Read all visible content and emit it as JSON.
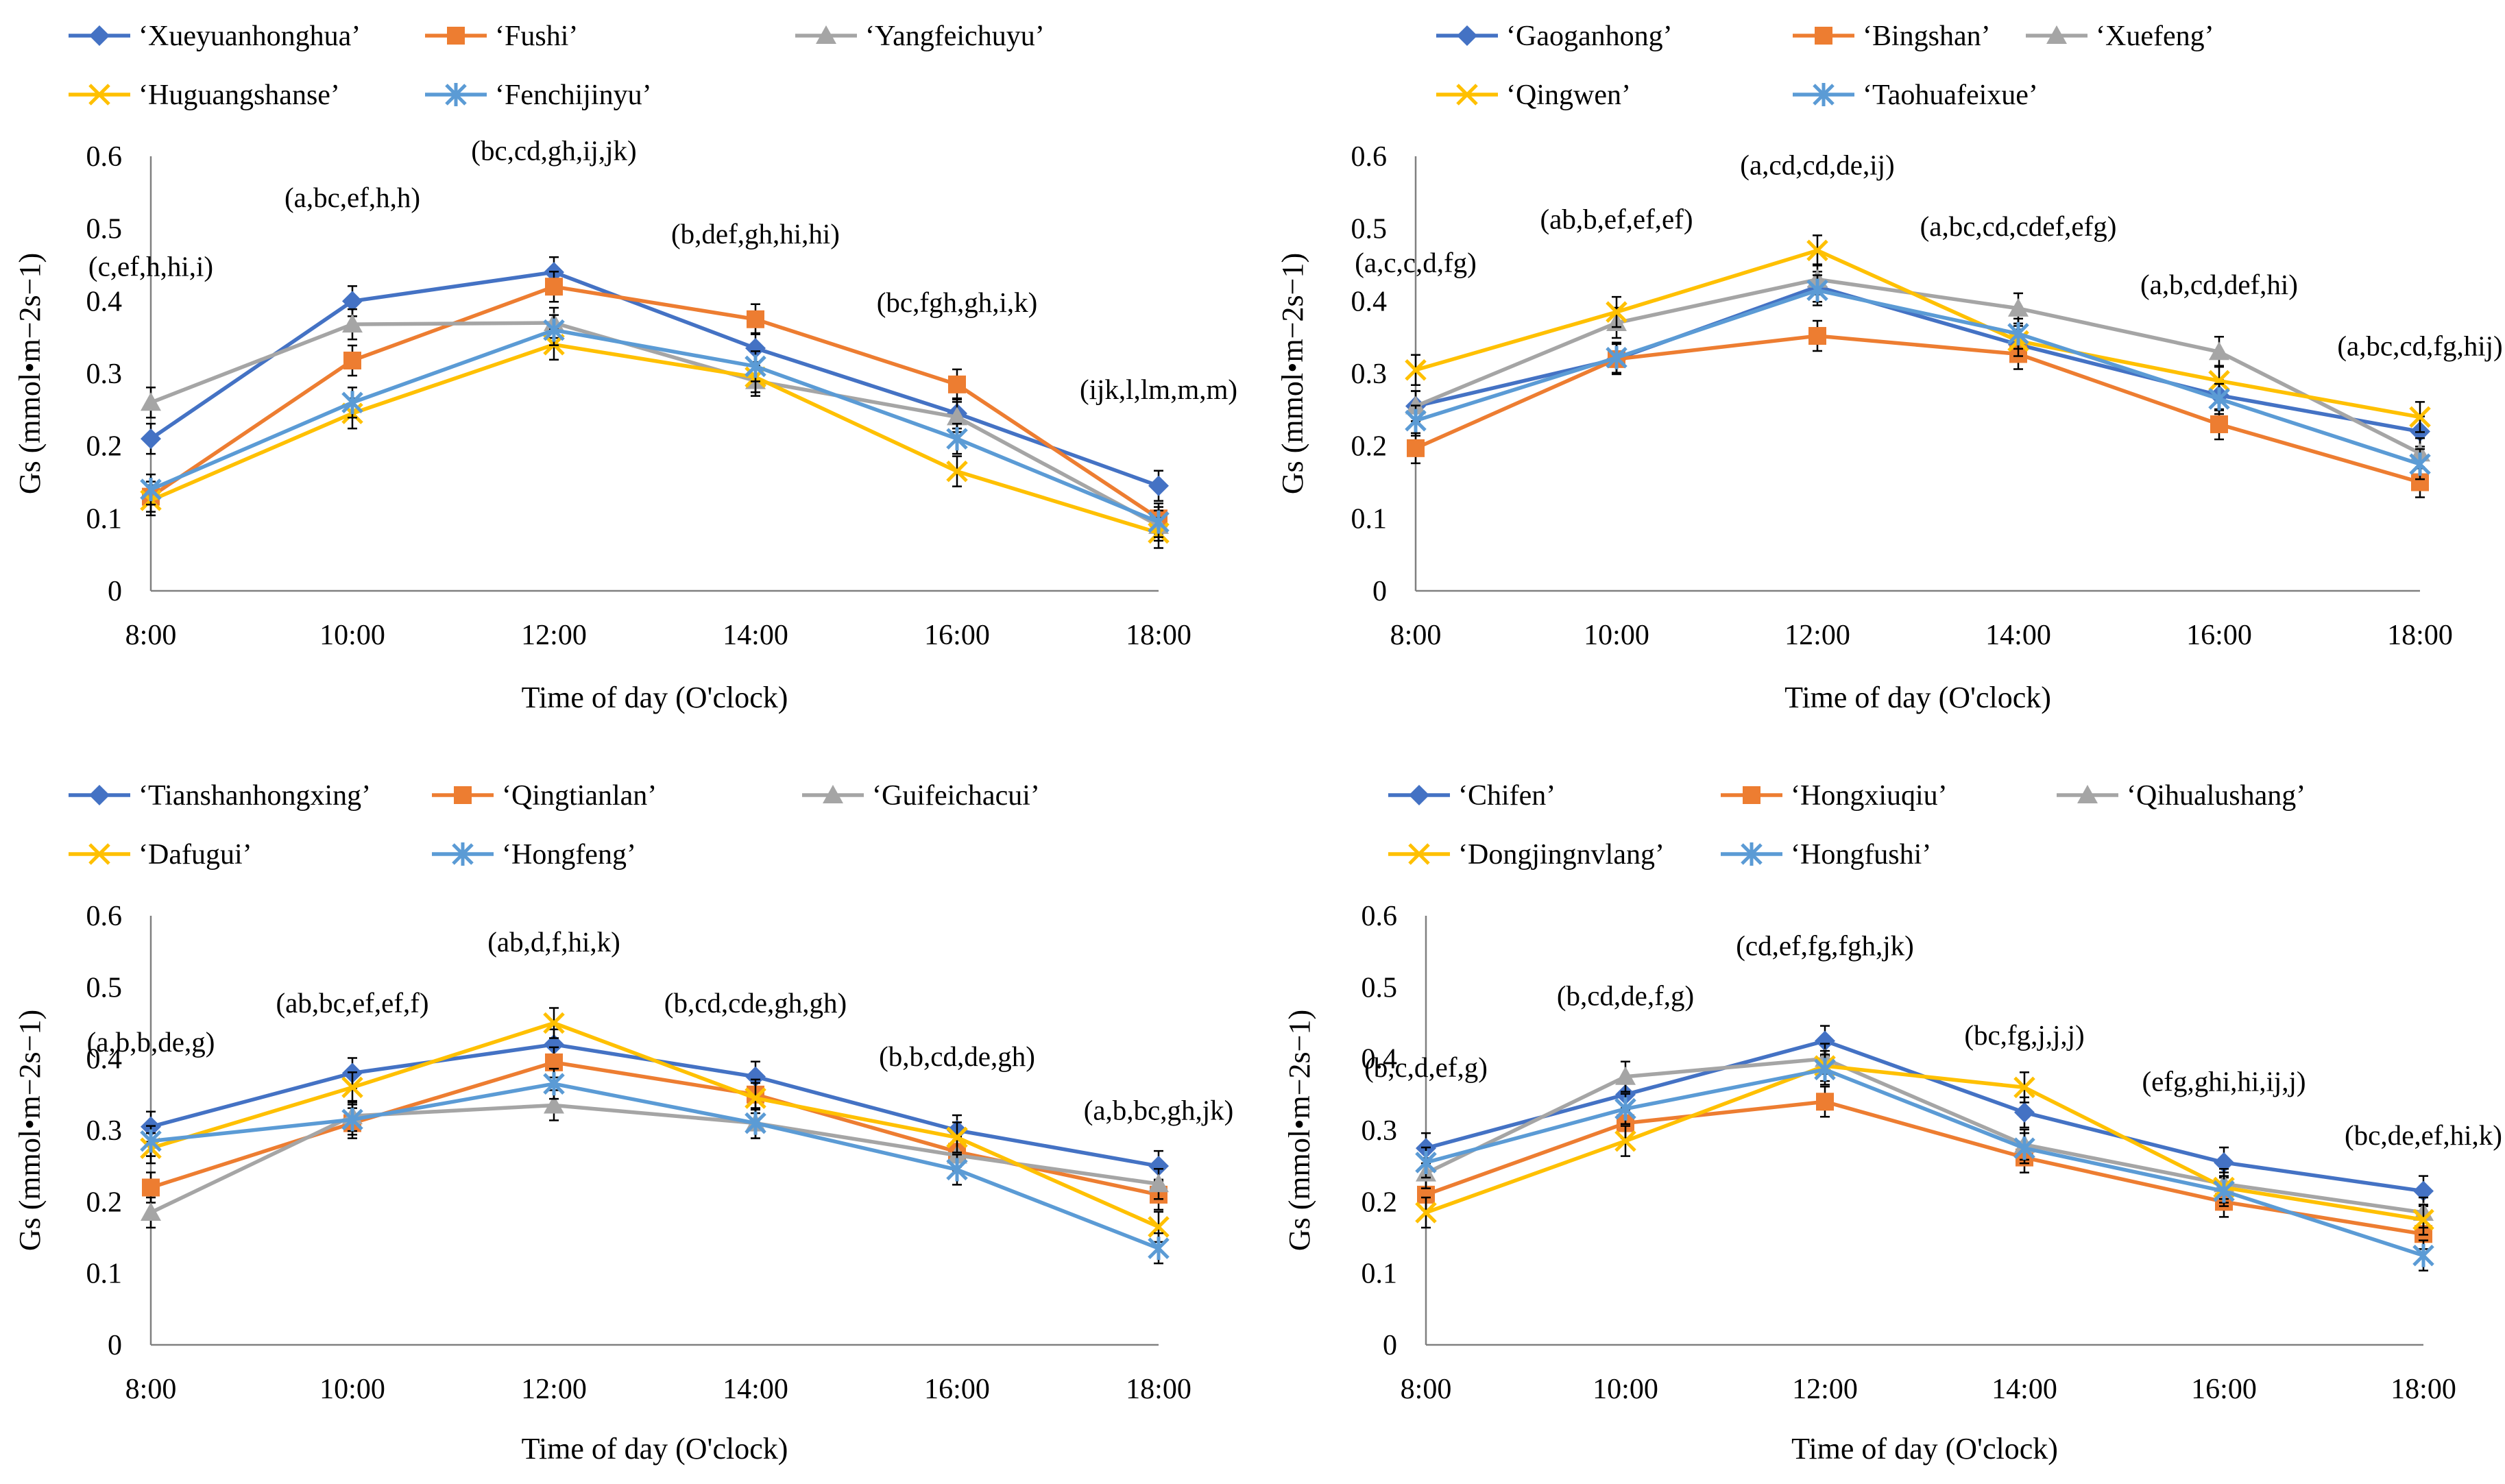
{
  "colors": {
    "blue": "#4472C4",
    "orange": "#ED7D31",
    "gray": "#A5A5A5",
    "yellow": "#FFC000",
    "lightblue": "#5B9BD5"
  },
  "chart_data": [
    {
      "type": "line",
      "title": "",
      "xlabel": "Time of day (O'clock)",
      "ylabel": "Gs (mmol•m−2s−1)",
      "categories": [
        "8:00",
        "10:00",
        "12:00",
        "14:00",
        "16:00",
        "18:00"
      ],
      "ylim": [
        0,
        0.6
      ],
      "yticks": [
        "0",
        "0.1",
        "0.2",
        "0.3",
        "0.4",
        "0.5",
        "0.6"
      ],
      "legend": "top",
      "series": [
        {
          "name": "‘Xueyuanhonghua’",
          "color": "blue",
          "marker": "diamond",
          "values": [
            0.21,
            0.4,
            0.44,
            0.335,
            0.245,
            0.145
          ]
        },
        {
          "name": "‘Fushi’",
          "color": "orange",
          "marker": "square",
          "values": [
            0.13,
            0.318,
            0.42,
            0.375,
            0.285,
            0.1
          ]
        },
        {
          "name": "‘Yangfeichuyu’",
          "color": "gray",
          "marker": "triangle",
          "values": [
            0.26,
            0.368,
            0.37,
            0.29,
            0.24,
            0.09
          ]
        },
        {
          "name": "‘Huguangshanse’",
          "color": "yellow",
          "marker": "x",
          "values": [
            0.125,
            0.245,
            0.34,
            0.295,
            0.165,
            0.08
          ]
        },
        {
          "name": "‘Fenchijinyu’",
          "color": "lightblue",
          "marker": "asterisk",
          "values": [
            0.14,
            0.26,
            0.36,
            0.31,
            0.21,
            0.095
          ]
        }
      ],
      "annotations": [
        "(c,ef,h,hi,i)",
        "(a,bc,ef,h,h)",
        "(bc,cd,gh,ij,jk)",
        "(b,def,gh,hi,hi)",
        "(bc,fgh,gh,i,k)",
        "(ijk,l,lm,m,m)"
      ],
      "annotation_values": [
        0.435,
        0.53,
        0.595,
        0.48,
        0.385,
        0.265
      ]
    },
    {
      "type": "line",
      "title": "",
      "xlabel": "Time of day (O'clock)",
      "ylabel": "Gs (mmol•m−2s−1)",
      "categories": [
        "8:00",
        "10:00",
        "12:00",
        "14:00",
        "16:00",
        "18:00"
      ],
      "ylim": [
        0,
        0.6
      ],
      "yticks": [
        "0",
        "0.1",
        "0.2",
        "0.3",
        "0.4",
        "0.5",
        "0.6"
      ],
      "legend": "top",
      "series": [
        {
          "name": "‘Gaoganhong’",
          "color": "blue",
          "marker": "diamond",
          "values": [
            0.255,
            0.32,
            0.42,
            0.34,
            0.27,
            0.22
          ]
        },
        {
          "name": "‘Bingshan’",
          "color": "orange",
          "marker": "square",
          "values": [
            0.197,
            0.32,
            0.352,
            0.327,
            0.23,
            0.15
          ]
        },
        {
          "name": "‘Xuefeng’",
          "color": "gray",
          "marker": "triangle",
          "values": [
            0.255,
            0.37,
            0.43,
            0.39,
            0.33,
            0.19
          ]
        },
        {
          "name": "‘Qingwen’",
          "color": "yellow",
          "marker": "x",
          "values": [
            0.305,
            0.385,
            0.47,
            0.345,
            0.29,
            0.24
          ]
        },
        {
          "name": "‘Taohuafeixue’",
          "color": "lightblue",
          "marker": "asterisk",
          "values": [
            0.235,
            0.322,
            0.415,
            0.355,
            0.265,
            0.175
          ]
        }
      ],
      "annotations": [
        "(a,c,c,d,fg)",
        "(ab,b,ef,ef,ef)",
        "(a,cd,cd,de,ij)",
        "(a,bc,cd,cdef,efg)",
        "(a,b,cd,def,hi)",
        "(a,bc,cd,fg,hij)"
      ],
      "annotation_values": [
        0.44,
        0.5,
        0.575,
        0.49,
        0.41,
        0.325
      ]
    },
    {
      "type": "line",
      "title": "",
      "xlabel": "Time of day (O'clock)",
      "ylabel": "Gs (mmol•m−2s−1)",
      "categories": [
        "8:00",
        "10:00",
        "12:00",
        "14:00",
        "16:00",
        "18:00"
      ],
      "ylim": [
        0,
        0.6
      ],
      "yticks": [
        "0",
        "0.1",
        "0.2",
        "0.3",
        "0.4",
        "0.5",
        "0.6"
      ],
      "legend": "top",
      "series": [
        {
          "name": "‘Tianshanhongxing’",
          "color": "blue",
          "marker": "diamond",
          "values": [
            0.305,
            0.38,
            0.42,
            0.375,
            0.3,
            0.25
          ]
        },
        {
          "name": "‘Qingtianlan’",
          "color": "orange",
          "marker": "square",
          "values": [
            0.22,
            0.31,
            0.395,
            0.35,
            0.27,
            0.21
          ]
        },
        {
          "name": "‘Guifeichacui’",
          "color": "gray",
          "marker": "triangle",
          "values": [
            0.185,
            0.32,
            0.335,
            0.31,
            0.265,
            0.225
          ]
        },
        {
          "name": "‘Dafugui’",
          "color": "yellow",
          "marker": "x",
          "values": [
            0.275,
            0.36,
            0.45,
            0.345,
            0.29,
            0.165
          ]
        },
        {
          "name": "‘Hongfeng’",
          "color": "lightblue",
          "marker": "asterisk",
          "values": [
            0.285,
            0.315,
            0.365,
            0.31,
            0.245,
            0.135
          ]
        }
      ],
      "annotations": [
        "(a,b,b,de,g)",
        "(ab,bc,ef,ef,f)",
        "(ab,d,f,hi,k)",
        "(b,cd,cde,gh,gh)",
        "(b,b,cd,de,gh)",
        "(a,b,bc,gh,jk)"
      ],
      "annotation_values": [
        0.41,
        0.465,
        0.55,
        0.465,
        0.39,
        0.315
      ]
    },
    {
      "type": "line",
      "title": "",
      "xlabel": "Time of day (O'clock)",
      "ylabel": "Gs (mmol•m−2s−1)",
      "categories": [
        "8:00",
        "10:00",
        "12:00",
        "14:00",
        "16:00",
        "18:00"
      ],
      "ylim": [
        0,
        0.6
      ],
      "yticks": [
        "0",
        "0.1",
        "0.2",
        "0.3",
        "0.4",
        "0.5",
        "0.6"
      ],
      "legend": "top",
      "series": [
        {
          "name": "‘Chifen’",
          "color": "blue",
          "marker": "diamond",
          "values": [
            0.275,
            0.35,
            0.425,
            0.325,
            0.255,
            0.215
          ]
        },
        {
          "name": "‘Hongxiuqiu’",
          "color": "orange",
          "marker": "square",
          "values": [
            0.21,
            0.31,
            0.34,
            0.262,
            0.2,
            0.155
          ]
        },
        {
          "name": "‘Qihualushang’",
          "color": "gray",
          "marker": "triangle",
          "values": [
            0.24,
            0.375,
            0.4,
            0.28,
            0.225,
            0.185
          ]
        },
        {
          "name": "‘Dongjingnvlang’",
          "color": "yellow",
          "marker": "x",
          "values": [
            0.185,
            0.285,
            0.39,
            0.36,
            0.22,
            0.175
          ]
        },
        {
          "name": "‘Hongfushi’",
          "color": "lightblue",
          "marker": "asterisk",
          "values": [
            0.255,
            0.33,
            0.385,
            0.275,
            0.215,
            0.125
          ]
        }
      ],
      "annotations": [
        "(b,c,d,ef,g)",
        "(b,cd,de,f,g)",
        "(cd,ef,fg,fgh,jk)",
        "(bc,fg,j,j,j)",
        "(efg,ghi,hi,ij,j)",
        "(bc,de,ef,hi,k)"
      ],
      "annotation_values": [
        0.375,
        0.475,
        0.545,
        0.42,
        0.355,
        0.28
      ]
    }
  ]
}
